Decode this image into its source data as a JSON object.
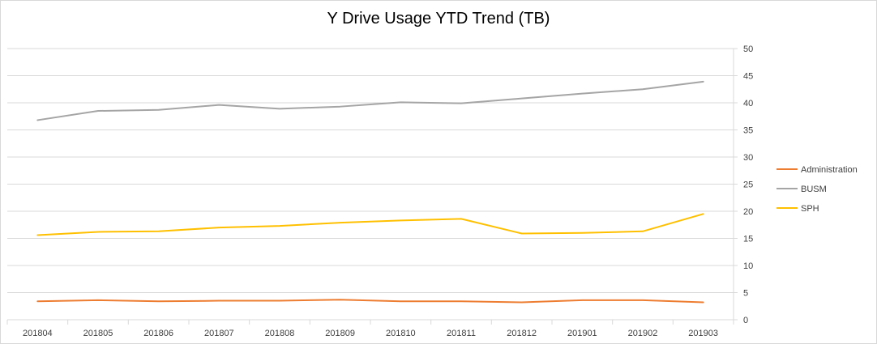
{
  "chart_data": {
    "type": "line",
    "title": "Y Drive Usage YTD Trend (TB)",
    "xlabel": "",
    "ylabel": "",
    "categories": [
      "201804",
      "201805",
      "201806",
      "201807",
      "201808",
      "201809",
      "201810",
      "201811",
      "201812",
      "201901",
      "201902",
      "201903"
    ],
    "ylim": [
      0,
      50
    ],
    "yticks": [
      0,
      5,
      10,
      15,
      20,
      25,
      30,
      35,
      40,
      45,
      50
    ],
    "y_axis_side": "right",
    "grid": true,
    "legend": "right",
    "series": [
      {
        "name": "Administration",
        "color": "#ED7D31",
        "values": [
          3.4,
          3.6,
          3.4,
          3.5,
          3.5,
          3.7,
          3.4,
          3.4,
          3.2,
          3.6,
          3.6,
          3.2
        ]
      },
      {
        "name": "BUSM",
        "color": "#A5A5A5",
        "values": [
          36.8,
          38.5,
          38.7,
          39.6,
          38.9,
          39.3,
          40.1,
          39.9,
          40.8,
          41.7,
          42.5,
          43.9
        ]
      },
      {
        "name": "SPH",
        "color": "#FFC000",
        "values": [
          15.6,
          16.2,
          16.3,
          17.0,
          17.3,
          17.9,
          18.3,
          18.6,
          15.9,
          16.0,
          16.3,
          19.5
        ]
      }
    ]
  }
}
